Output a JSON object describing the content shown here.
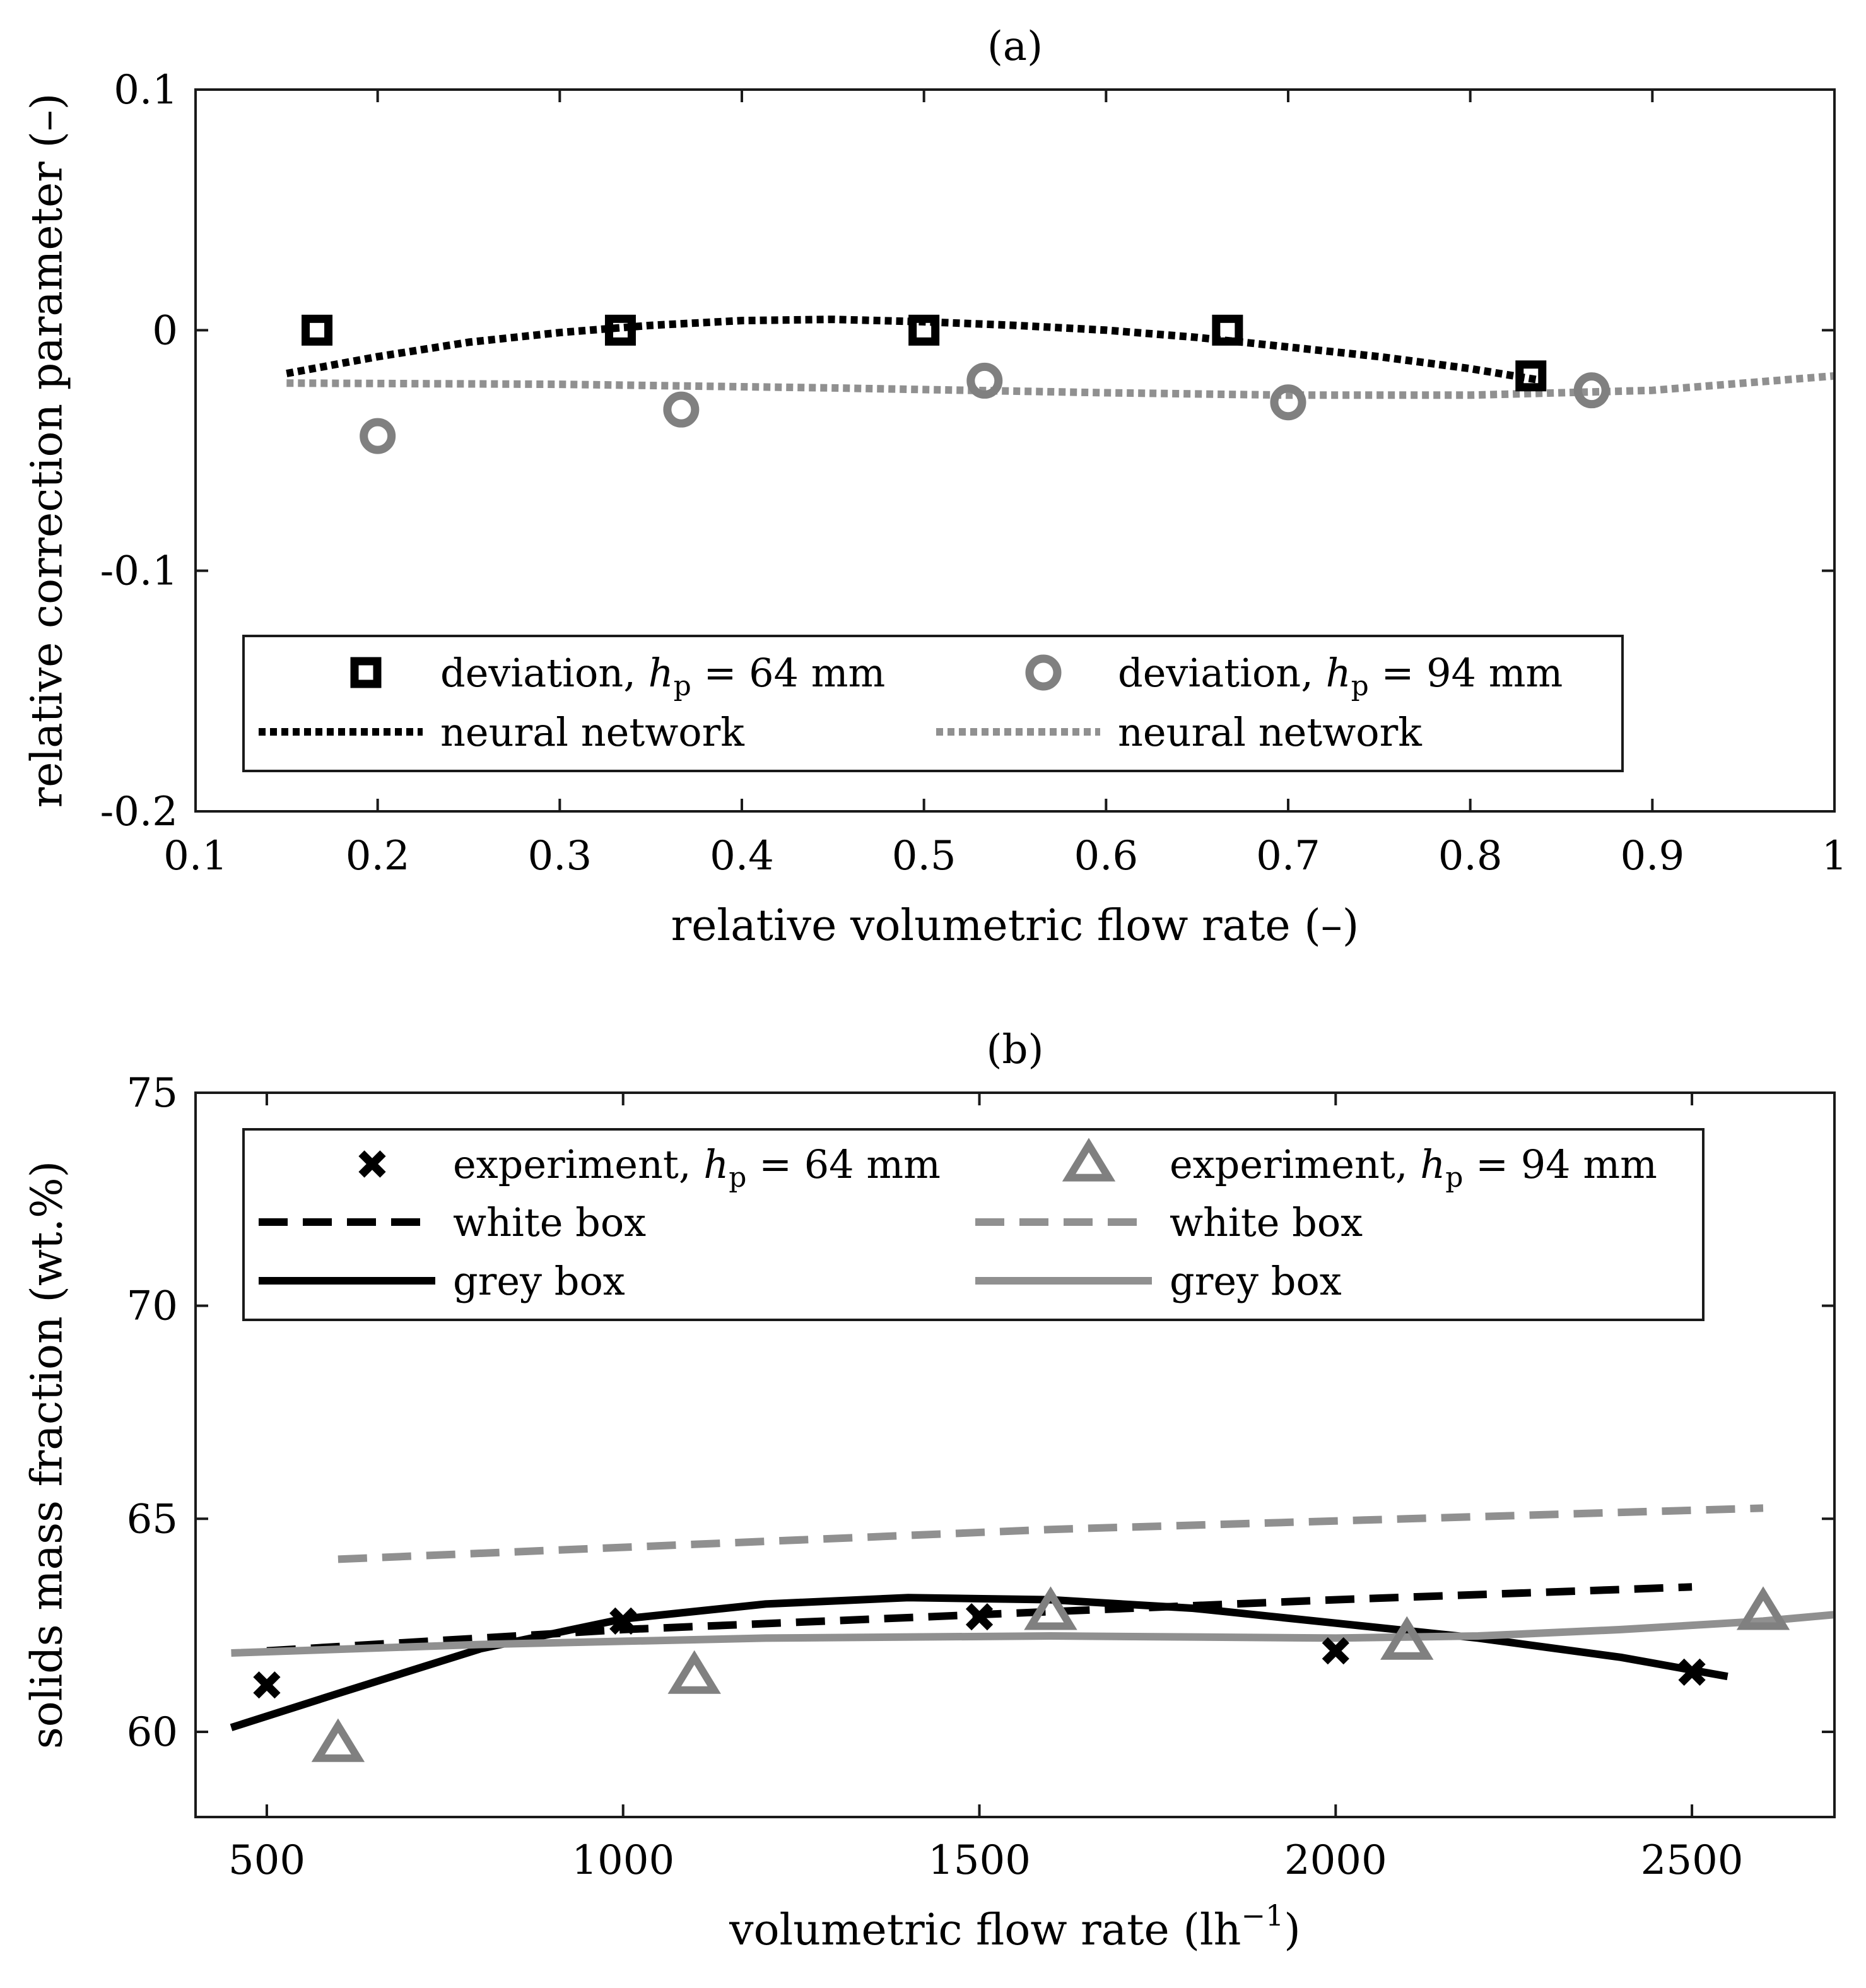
{
  "chart_data": [
    {
      "id": "a",
      "type": "scatter",
      "title": "(a)",
      "xlabel": "relative volumetric flow rate (–)",
      "ylabel": "relative correction parameter (–)",
      "xlim": [
        0.1,
        1.0
      ],
      "ylim": [
        -0.2,
        0.1
      ],
      "xticks": [
        "0.1",
        "0.2",
        "0.3",
        "0.4",
        "0.5",
        "0.6",
        "0.7",
        "0.8",
        "0.9",
        "1"
      ],
      "yticks": [
        "-0.2",
        "-0.1",
        "0",
        "0.1"
      ],
      "xtick_values": [
        0.1,
        0.2,
        0.3,
        0.4,
        0.5,
        0.6,
        0.7,
        0.8,
        0.9,
        1.0
      ],
      "ytick_values": [
        -0.2,
        -0.1,
        0,
        0.1
      ],
      "series": [
        {
          "name": "deviation, h_p = 64 mm",
          "kind": "marker",
          "marker": "square",
          "color": "#000000",
          "x": [
            0.1667,
            0.3333,
            0.5,
            0.6667,
            0.8333
          ],
          "y": [
            0.0,
            0.0,
            0.0,
            0.0,
            -0.019
          ]
        },
        {
          "name": "deviation, h_p = 94 mm",
          "kind": "marker",
          "marker": "circle",
          "color": "#808080",
          "x": [
            0.2,
            0.3667,
            0.5333,
            0.7,
            0.8667
          ],
          "y": [
            -0.044,
            -0.033,
            -0.021,
            -0.03,
            -0.025
          ]
        },
        {
          "name": "neural network",
          "kind": "line",
          "style": "dotted",
          "color": "#000000",
          "x": [
            0.15,
            0.2,
            0.25,
            0.3,
            0.35,
            0.4,
            0.45,
            0.5,
            0.55,
            0.6,
            0.65,
            0.7,
            0.75,
            0.8,
            0.84
          ],
          "y": [
            -0.018,
            -0.011,
            -0.005,
            -0.001,
            0.002,
            0.004,
            0.0045,
            0.0035,
            0.002,
            0.0,
            -0.003,
            -0.007,
            -0.011,
            -0.016,
            -0.021
          ]
        },
        {
          "name": "neural network",
          "kind": "line",
          "style": "dotted",
          "color": "#909090",
          "x": [
            0.15,
            0.3,
            0.45,
            0.6,
            0.7,
            0.8,
            0.9,
            1.0
          ],
          "y": [
            -0.022,
            -0.0225,
            -0.024,
            -0.026,
            -0.027,
            -0.027,
            -0.025,
            -0.019
          ]
        }
      ],
      "legend": {
        "placement": "bottom",
        "entries": [
          {
            "label": "deviation, ",
            "math": "h",
            "sub": "p",
            "rest": " = 64 mm"
          },
          {
            "label": "deviation, ",
            "math": "h",
            "sub": "p",
            "rest": " = 94 mm"
          },
          {
            "label": "neural network"
          },
          {
            "label": "neural network"
          }
        ]
      }
    },
    {
      "id": "b",
      "type": "scatter",
      "title": "(b)",
      "xlabel": "volumetric flow rate (lh",
      "xlabel_sup": "−1",
      "xlabel_end": ")",
      "ylabel": "solids mass fraction (wt.%)",
      "xlim": [
        400,
        2700
      ],
      "ylim": [
        58,
        75
      ],
      "xticks": [
        "500",
        "1000",
        "1500",
        "2000",
        "2500"
      ],
      "yticks": [
        "60",
        "65",
        "70",
        "75"
      ],
      "xtick_values": [
        500,
        1000,
        1500,
        2000,
        2500
      ],
      "ytick_values": [
        60,
        65,
        70,
        75
      ],
      "series": [
        {
          "name": "experiment, h_p = 64 mm",
          "kind": "marker",
          "marker": "x",
          "color": "#000000",
          "x": [
            500,
            1000,
            1500,
            2000,
            2500
          ],
          "y": [
            61.1,
            62.6,
            62.7,
            61.9,
            61.4
          ]
        },
        {
          "name": "experiment, h_p = 94 mm",
          "kind": "marker",
          "marker": "triangle",
          "color": "#808080",
          "x": [
            600,
            1100,
            1600,
            2100,
            2600
          ],
          "y": [
            59.7,
            61.3,
            62.8,
            62.1,
            62.8
          ]
        },
        {
          "name": "white box",
          "kind": "line",
          "style": "dashed",
          "color": "#000000",
          "x": [
            500,
            1000,
            1500,
            2000,
            2500
          ],
          "y": [
            61.9,
            62.4,
            62.75,
            63.1,
            63.4
          ]
        },
        {
          "name": "white box",
          "kind": "line",
          "style": "dashed",
          "color": "#909090",
          "x": [
            600,
            1100,
            1600,
            2100,
            2600
          ],
          "y": [
            64.05,
            64.4,
            64.75,
            65.0,
            65.25
          ]
        },
        {
          "name": "grey box",
          "kind": "line",
          "style": "solid",
          "color": "#000000",
          "x": [
            450,
            600,
            800,
            1000,
            1200,
            1400,
            1600,
            1800,
            2000,
            2200,
            2400,
            2550
          ],
          "y": [
            60.1,
            60.9,
            61.95,
            62.65,
            63.0,
            63.15,
            63.1,
            62.9,
            62.55,
            62.2,
            61.75,
            61.3
          ]
        },
        {
          "name": "grey box",
          "kind": "line",
          "style": "solid",
          "color": "#909090",
          "x": [
            450,
            800,
            1200,
            1600,
            2000,
            2200,
            2400,
            2600,
            2700
          ],
          "y": [
            61.85,
            62.05,
            62.2,
            62.25,
            62.2,
            62.25,
            62.4,
            62.6,
            62.75
          ]
        }
      ],
      "legend": {
        "placement": "top",
        "entries": [
          {
            "label": "experiment, ",
            "math": "h",
            "sub": "p",
            "rest": " = 64 mm"
          },
          {
            "label": "experiment, ",
            "math": "h",
            "sub": "p",
            "rest": " = 94 mm"
          },
          {
            "label": "white box"
          },
          {
            "label": "white box"
          },
          {
            "label": "grey box"
          },
          {
            "label": "grey box"
          }
        ]
      }
    }
  ]
}
